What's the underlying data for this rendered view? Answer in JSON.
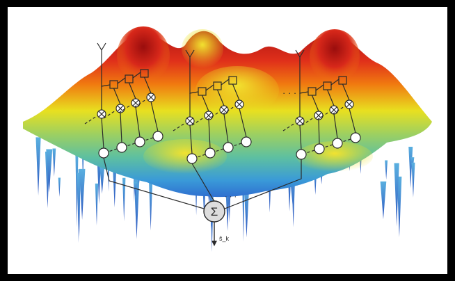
{
  "diagram": {
    "continuation_marks": [
      "· · ·",
      "· · ·"
    ],
    "combiner_symbol": "Σ",
    "output_label": "ŝ_k",
    "multiplier_symbol": "⊗",
    "adder_symbol": "+",
    "antenna_count": 3,
    "colors": {
      "background": "#000000",
      "panel": "#ffffff",
      "peak": "#b01515",
      "high": "#f07a10",
      "mid": "#e8e020",
      "low": "#7cc870",
      "base": "#2f8fd0",
      "spike": "#3a6fd0",
      "ink": "#2a2a2a"
    }
  }
}
